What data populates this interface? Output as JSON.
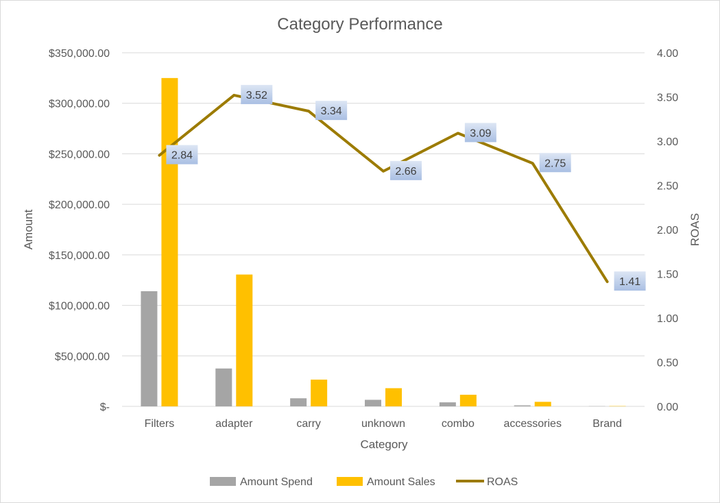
{
  "chart_data": {
    "type": "bar",
    "title": "Category Performance",
    "xlabel": "Category",
    "ylabel": "Amount",
    "y2label": "ROAS",
    "categories": [
      "Filters",
      "adapter",
      "carry",
      "unknown",
      "combo",
      "accessories",
      "Brand"
    ],
    "ylim": [
      0,
      350000
    ],
    "y_ticks": [
      0,
      50000,
      100000,
      150000,
      200000,
      250000,
      300000,
      350000
    ],
    "y_tick_labels": [
      "$-",
      "$50,000.00",
      "$100,000.00",
      "$150,000.00",
      "$200,000.00",
      "$250,000.00",
      "$300,000.00",
      "$350,000.00"
    ],
    "y2lim": [
      0,
      4
    ],
    "y2_ticks": [
      0,
      0.5,
      1,
      1.5,
      2,
      2.5,
      3,
      3.5,
      4
    ],
    "y2_tick_labels": [
      "0.00",
      "0.50",
      "1.00",
      "1.50",
      "2.00",
      "2.50",
      "3.00",
      "3.50",
      "4.00"
    ],
    "grid": true,
    "legend_position": "bottom",
    "series": [
      {
        "name": "Amount Spend",
        "type": "bar",
        "axis": "left",
        "color": "#a5a5a5",
        "values": [
          114000,
          37500,
          8000,
          6500,
          4000,
          1000,
          200
        ]
      },
      {
        "name": "Amount Sales",
        "type": "bar",
        "axis": "left",
        "color": "#ffc000",
        "values": [
          325000,
          130500,
          26500,
          18000,
          11500,
          4500,
          300
        ]
      },
      {
        "name": "ROAS",
        "type": "line",
        "axis": "right",
        "color": "#9c7b00",
        "values": [
          2.84,
          3.52,
          3.34,
          2.66,
          3.09,
          2.75,
          1.41
        ],
        "data_labels": [
          "2.84",
          "3.52",
          "3.34",
          "2.66",
          "3.09",
          "2.75",
          "1.41"
        ]
      }
    ]
  }
}
